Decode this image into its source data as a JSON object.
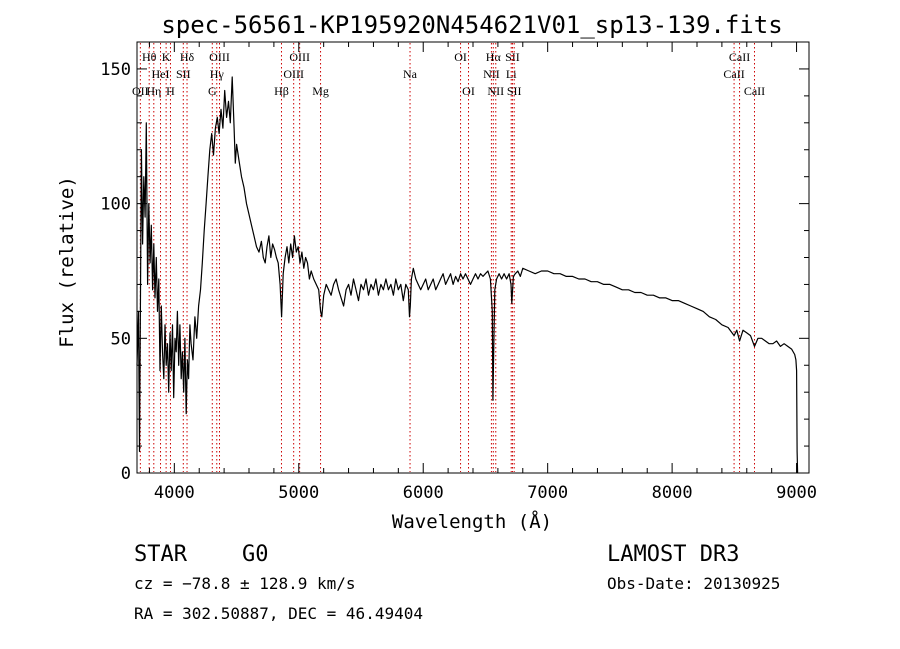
{
  "chart_data": {
    "type": "line",
    "title": "spec-56561-KP195920N454621V01_sp13-139.fits",
    "xlabel": "Wavelength (Å)",
    "ylabel": "Flux (relative)",
    "xlim": [
      3700,
      9100
    ],
    "ylim": [
      0,
      160
    ],
    "xticks": [
      4000,
      5000,
      6000,
      7000,
      8000,
      9000
    ],
    "yticks": [
      0,
      50,
      100,
      150
    ],
    "grid": false,
    "line_color": "#000000",
    "marker_color": "#cc0000",
    "series": [
      {
        "values": [
          [
            3700,
            40
          ],
          [
            3712,
            60
          ],
          [
            3720,
            8
          ],
          [
            3735,
            120
          ],
          [
            3745,
            85
          ],
          [
            3755,
            110
          ],
          [
            3765,
            95
          ],
          [
            3775,
            130
          ],
          [
            3785,
            70
          ],
          [
            3795,
            100
          ],
          [
            3805,
            78
          ],
          [
            3815,
            92
          ],
          [
            3825,
            68
          ],
          [
            3835,
            85
          ],
          [
            3845,
            65
          ],
          [
            3855,
            80
          ],
          [
            3865,
            60
          ],
          [
            3875,
            72
          ],
          [
            3885,
            38
          ],
          [
            3895,
            62
          ],
          [
            3905,
            45
          ],
          [
            3915,
            35
          ],
          [
            3925,
            55
          ],
          [
            3935,
            40
          ],
          [
            3945,
            48
          ],
          [
            3955,
            30
          ],
          [
            3965,
            52
          ],
          [
            3975,
            38
          ],
          [
            3985,
            55
          ],
          [
            3995,
            28
          ],
          [
            4005,
            50
          ],
          [
            4015,
            45
          ],
          [
            4025,
            60
          ],
          [
            4035,
            40
          ],
          [
            4045,
            55
          ],
          [
            4055,
            35
          ],
          [
            4065,
            45
          ],
          [
            4075,
            30
          ],
          [
            4085,
            50
          ],
          [
            4095,
            22
          ],
          [
            4105,
            42
          ],
          [
            4115,
            35
          ],
          [
            4125,
            55
          ],
          [
            4135,
            48
          ],
          [
            4150,
            42
          ],
          [
            4165,
            58
          ],
          [
            4180,
            50
          ],
          [
            4195,
            62
          ],
          [
            4210,
            68
          ],
          [
            4225,
            78
          ],
          [
            4240,
            90
          ],
          [
            4255,
            100
          ],
          [
            4270,
            110
          ],
          [
            4285,
            120
          ],
          [
            4300,
            126
          ],
          [
            4315,
            118
          ],
          [
            4330,
            128
          ],
          [
            4345,
            132
          ],
          [
            4360,
            126
          ],
          [
            4375,
            135
          ],
          [
            4390,
            128
          ],
          [
            4405,
            142
          ],
          [
            4420,
            132
          ],
          [
            4435,
            138
          ],
          [
            4450,
            130
          ],
          [
            4465,
            147
          ],
          [
            4480,
            128
          ],
          [
            4490,
            115
          ],
          [
            4500,
            122
          ],
          [
            4520,
            116
          ],
          [
            4540,
            110
          ],
          [
            4560,
            106
          ],
          [
            4580,
            100
          ],
          [
            4600,
            96
          ],
          [
            4620,
            92
          ],
          [
            4640,
            88
          ],
          [
            4660,
            84
          ],
          [
            4680,
            82
          ],
          [
            4700,
            86
          ],
          [
            4715,
            80
          ],
          [
            4730,
            78
          ],
          [
            4745,
            84
          ],
          [
            4760,
            88
          ],
          [
            4775,
            80
          ],
          [
            4790,
            85
          ],
          [
            4805,
            83
          ],
          [
            4820,
            80
          ],
          [
            4835,
            78
          ],
          [
            4850,
            70
          ],
          [
            4862,
            58
          ],
          [
            4875,
            74
          ],
          [
            4890,
            80
          ],
          [
            4905,
            84
          ],
          [
            4920,
            78
          ],
          [
            4935,
            85
          ],
          [
            4950,
            80
          ],
          [
            4965,
            88
          ],
          [
            4980,
            82
          ],
          [
            4995,
            84
          ],
          [
            5010,
            78
          ],
          [
            5025,
            82
          ],
          [
            5040,
            76
          ],
          [
            5055,
            80
          ],
          [
            5070,
            78
          ],
          [
            5085,
            72
          ],
          [
            5100,
            75
          ],
          [
            5120,
            72
          ],
          [
            5140,
            70
          ],
          [
            5160,
            68
          ],
          [
            5175,
            60
          ],
          [
            5185,
            58
          ],
          [
            5200,
            66
          ],
          [
            5220,
            70
          ],
          [
            5240,
            68
          ],
          [
            5260,
            66
          ],
          [
            5280,
            70
          ],
          [
            5300,
            72
          ],
          [
            5320,
            68
          ],
          [
            5340,
            65
          ],
          [
            5360,
            62
          ],
          [
            5380,
            68
          ],
          [
            5400,
            70
          ],
          [
            5420,
            66
          ],
          [
            5440,
            72
          ],
          [
            5460,
            68
          ],
          [
            5480,
            64
          ],
          [
            5500,
            70
          ],
          [
            5520,
            68
          ],
          [
            5540,
            72
          ],
          [
            5560,
            66
          ],
          [
            5580,
            70
          ],
          [
            5600,
            68
          ],
          [
            5620,
            72
          ],
          [
            5640,
            66
          ],
          [
            5660,
            70
          ],
          [
            5680,
            68
          ],
          [
            5700,
            72
          ],
          [
            5720,
            68
          ],
          [
            5740,
            70
          ],
          [
            5760,
            66
          ],
          [
            5780,
            72
          ],
          [
            5800,
            68
          ],
          [
            5820,
            70
          ],
          [
            5840,
            64
          ],
          [
            5860,
            70
          ],
          [
            5880,
            68
          ],
          [
            5890,
            58
          ],
          [
            5896,
            62
          ],
          [
            5905,
            72
          ],
          [
            5920,
            76
          ],
          [
            5940,
            72
          ],
          [
            5960,
            70
          ],
          [
            5980,
            68
          ],
          [
            6000,
            70
          ],
          [
            6020,
            72
          ],
          [
            6040,
            68
          ],
          [
            6060,
            70
          ],
          [
            6080,
            72
          ],
          [
            6100,
            68
          ],
          [
            6120,
            70
          ],
          [
            6140,
            72
          ],
          [
            6160,
            74
          ],
          [
            6180,
            70
          ],
          [
            6200,
            72
          ],
          [
            6220,
            74
          ],
          [
            6240,
            70
          ],
          [
            6260,
            73
          ],
          [
            6280,
            71
          ],
          [
            6300,
            74
          ],
          [
            6320,
            72
          ],
          [
            6340,
            74
          ],
          [
            6360,
            72
          ],
          [
            6380,
            70
          ],
          [
            6400,
            72
          ],
          [
            6420,
            74
          ],
          [
            6440,
            72
          ],
          [
            6460,
            74
          ],
          [
            6480,
            73
          ],
          [
            6500,
            74
          ],
          [
            6520,
            75
          ],
          [
            6540,
            72
          ],
          [
            6555,
            60
          ],
          [
            6560,
            27
          ],
          [
            6566,
            45
          ],
          [
            6575,
            68
          ],
          [
            6590,
            72
          ],
          [
            6610,
            74
          ],
          [
            6630,
            72
          ],
          [
            6650,
            74
          ],
          [
            6670,
            72
          ],
          [
            6690,
            74
          ],
          [
            6705,
            70
          ],
          [
            6712,
            63
          ],
          [
            6718,
            68
          ],
          [
            6725,
            73
          ],
          [
            6740,
            74
          ],
          [
            6760,
            75
          ],
          [
            6780,
            73
          ],
          [
            6800,
            76
          ],
          [
            6850,
            75
          ],
          [
            6900,
            74
          ],
          [
            6950,
            75
          ],
          [
            7000,
            75
          ],
          [
            7050,
            74
          ],
          [
            7100,
            74
          ],
          [
            7150,
            73
          ],
          [
            7200,
            73
          ],
          [
            7250,
            72
          ],
          [
            7300,
            72
          ],
          [
            7350,
            71
          ],
          [
            7400,
            71
          ],
          [
            7450,
            70
          ],
          [
            7500,
            70
          ],
          [
            7550,
            69
          ],
          [
            7600,
            68
          ],
          [
            7650,
            68
          ],
          [
            7700,
            67
          ],
          [
            7750,
            67
          ],
          [
            7800,
            66
          ],
          [
            7850,
            66
          ],
          [
            7900,
            65
          ],
          [
            7950,
            65
          ],
          [
            8000,
            64
          ],
          [
            8050,
            64
          ],
          [
            8100,
            63
          ],
          [
            8150,
            62
          ],
          [
            8200,
            61
          ],
          [
            8250,
            60
          ],
          [
            8300,
            58
          ],
          [
            8350,
            57
          ],
          [
            8400,
            55
          ],
          [
            8450,
            54
          ],
          [
            8498,
            51
          ],
          [
            8520,
            53
          ],
          [
            8542,
            49
          ],
          [
            8570,
            53
          ],
          [
            8600,
            52
          ],
          [
            8630,
            51
          ],
          [
            8662,
            47
          ],
          [
            8690,
            50
          ],
          [
            8720,
            50
          ],
          [
            8750,
            49
          ],
          [
            8780,
            48
          ],
          [
            8810,
            48
          ],
          [
            8840,
            49
          ],
          [
            8870,
            47
          ],
          [
            8900,
            48
          ],
          [
            8930,
            47
          ],
          [
            8960,
            46
          ],
          [
            8985,
            44
          ],
          [
            8995,
            42
          ],
          [
            9000,
            38
          ],
          [
            9004,
            8
          ],
          [
            9008,
            0
          ]
        ]
      }
    ],
    "lines": [
      {
        "label": "OII",
        "x": 3727,
        "row": 2
      },
      {
        "label": "Hθ",
        "x": 3798,
        "row": 0
      },
      {
        "label": "Hη",
        "x": 3835,
        "row": 2
      },
      {
        "label": "HeI",
        "x": 3889,
        "row": 1
      },
      {
        "label": "K",
        "x": 3934,
        "row": 0
      },
      {
        "label": "H",
        "x": 3969,
        "row": 2
      },
      {
        "label": "Hδ",
        "x": 4102,
        "row": 0
      },
      {
        "label": "SII",
        "x": 4072,
        "row": 1
      },
      {
        "label": "G",
        "x": 4305,
        "row": 2
      },
      {
        "label": "Hγ",
        "x": 4341,
        "row": 1
      },
      {
        "label": "OIII",
        "x": 4363,
        "row": 0
      },
      {
        "label": "Hβ",
        "x": 4861,
        "row": 2
      },
      {
        "label": "OIII",
        "x": 4959,
        "row": 1
      },
      {
        "label": "OIII",
        "x": 5007,
        "row": 0
      },
      {
        "label": "Mg",
        "x": 5175,
        "row": 2
      },
      {
        "label": "Na",
        "x": 5894,
        "row": 1
      },
      {
        "label": "OI",
        "x": 6300,
        "row": 0
      },
      {
        "label": "OI",
        "x": 6364,
        "row": 2
      },
      {
        "label": "NII",
        "x": 6548,
        "row": 1
      },
      {
        "label": "Hα",
        "x": 6563,
        "row": 0
      },
      {
        "label": "NII",
        "x": 6583,
        "row": 2
      },
      {
        "label": "Li",
        "x": 6707,
        "row": 1
      },
      {
        "label": "SII",
        "x": 6717,
        "row": 0
      },
      {
        "label": "SII",
        "x": 6731,
        "row": 2
      },
      {
        "label": "CaII",
        "x": 8498,
        "row": 1
      },
      {
        "label": "CaII",
        "x": 8542,
        "row": 0
      },
      {
        "label": "CaII",
        "x": 8662,
        "row": 2
      }
    ]
  },
  "info": {
    "class": "STAR",
    "subclass": "G0",
    "survey": "LAMOST DR3",
    "cz": "cz = −78.8 ± 128.9 km/s",
    "obs_date": "Obs-Date: 20130925",
    "coords": "RA = 302.50887, DEC =  46.49404"
  }
}
